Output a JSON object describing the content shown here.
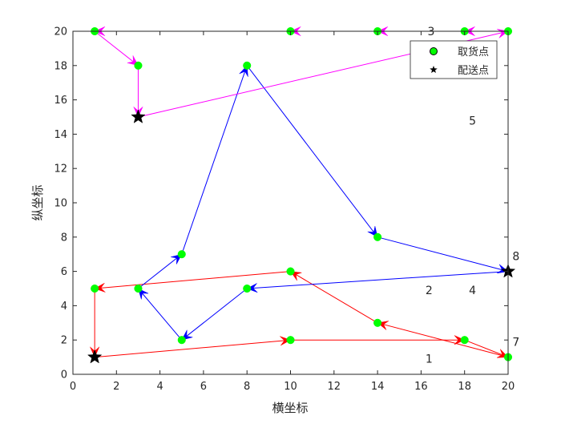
{
  "chart_data": {
    "type": "scatter",
    "title": "",
    "xlabel": "横坐标",
    "ylabel": "纵坐标",
    "xlim": [
      0,
      20
    ],
    "ylim": [
      0,
      20
    ],
    "xticks": [
      0,
      2,
      4,
      6,
      8,
      10,
      12,
      14,
      16,
      18,
      20
    ],
    "yticks": [
      0,
      2,
      4,
      6,
      8,
      10,
      12,
      14,
      16,
      18,
      20
    ],
    "grid": false,
    "legend": {
      "placement": "top-right",
      "entries": [
        {
          "label": "取货点",
          "marker": "circle",
          "color": "#00ff00"
        },
        {
          "label": "配送点",
          "marker": "star",
          "color": "#000000"
        }
      ]
    },
    "pickup_points": [
      {
        "x": 1,
        "y": 20
      },
      {
        "x": 10,
        "y": 20
      },
      {
        "x": 14,
        "y": 20
      },
      {
        "x": 18,
        "y": 20
      },
      {
        "x": 20,
        "y": 20
      },
      {
        "x": 3,
        "y": 18
      },
      {
        "x": 8,
        "y": 18
      },
      {
        "x": 14,
        "y": 8
      },
      {
        "x": 5,
        "y": 7
      },
      {
        "x": 1,
        "y": 5
      },
      {
        "x": 3,
        "y": 5
      },
      {
        "x": 10,
        "y": 6
      },
      {
        "x": 8,
        "y": 5
      },
      {
        "x": 14,
        "y": 3
      },
      {
        "x": 5,
        "y": 2
      },
      {
        "x": 10,
        "y": 2
      },
      {
        "x": 18,
        "y": 2
      },
      {
        "x": 20,
        "y": 1
      }
    ],
    "delivery_points": [
      {
        "x": 1,
        "y": 1
      },
      {
        "x": 3,
        "y": 15
      },
      {
        "x": 20,
        "y": 6
      }
    ],
    "routes": [
      {
        "color": "#ff0000",
        "points": [
          [
            1,
            1
          ],
          [
            10,
            2
          ],
          [
            18,
            2
          ],
          [
            20,
            1
          ],
          [
            14,
            3
          ],
          [
            10,
            6
          ],
          [
            1,
            5
          ],
          [
            1,
            1
          ]
        ]
      },
      {
        "color": "#0000ff",
        "points": [
          [
            20,
            6
          ],
          [
            8,
            5
          ],
          [
            5,
            2
          ],
          [
            3,
            5
          ],
          [
            5,
            7
          ],
          [
            8,
            18
          ],
          [
            14,
            8
          ],
          [
            20,
            6
          ]
        ]
      },
      {
        "color": "#ff00ff",
        "points": [
          [
            3,
            15
          ],
          [
            20,
            20
          ],
          [
            18,
            20
          ],
          [
            14,
            20
          ],
          [
            10,
            20
          ],
          [
            1,
            20
          ],
          [
            3,
            18
          ],
          [
            3,
            15
          ]
        ]
      }
    ],
    "annotations": [
      {
        "text": "3",
        "x": 16.3,
        "y": 20
      },
      {
        "text": "5",
        "x": 18.2,
        "y": 14.8
      },
      {
        "text": "8",
        "x": 20.2,
        "y": 6.9
      },
      {
        "text": "2",
        "x": 16.2,
        "y": 4.9
      },
      {
        "text": "4",
        "x": 18.2,
        "y": 4.9
      },
      {
        "text": "7",
        "x": 20.2,
        "y": 1.9
      },
      {
        "text": "1",
        "x": 16.2,
        "y": 0.9
      }
    ]
  }
}
